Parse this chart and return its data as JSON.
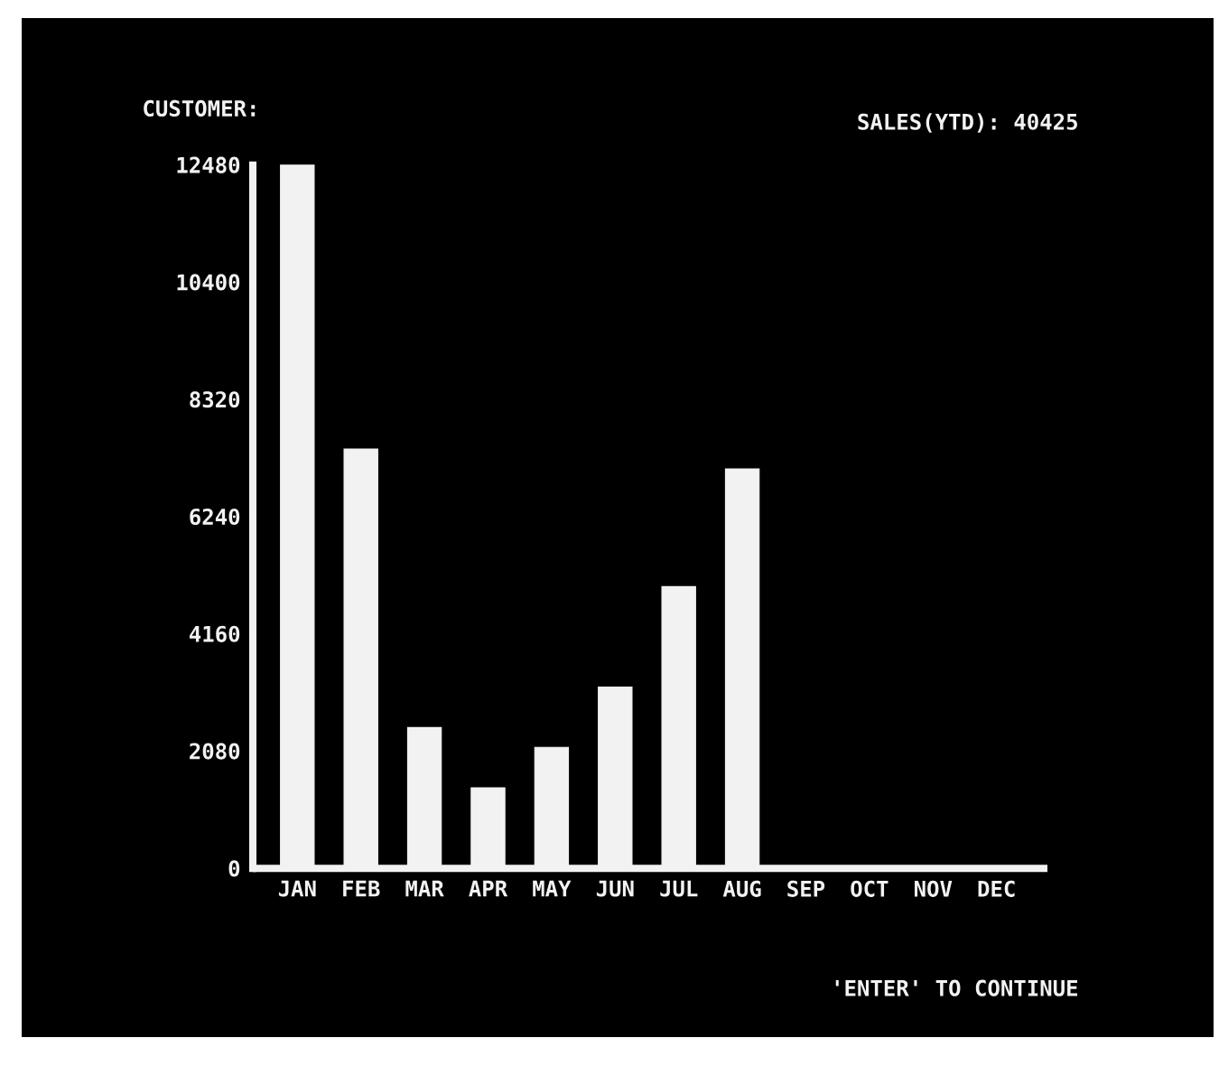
{
  "chart_data": {
    "type": "bar",
    "title": "CUSTOMER:",
    "annotations": [
      "SALES(YTD): 40425",
      "'ENTER' TO CONTINUE"
    ],
    "categories": [
      "JAN",
      "FEB",
      "MAR",
      "APR",
      "MAY",
      "JUN",
      "JUL",
      "AUG",
      "SEP",
      "OCT",
      "NOV",
      "DEC"
    ],
    "values": [
      12480,
      7440,
      2500,
      1430,
      2150,
      3220,
      5000,
      7090,
      0,
      0,
      0,
      0
    ],
    "color": "#f2f2f2",
    "ylim": [
      0,
      12480
    ],
    "yticks": [
      0,
      2080,
      4160,
      6240,
      8320,
      10400,
      12480
    ],
    "grid": false
  }
}
